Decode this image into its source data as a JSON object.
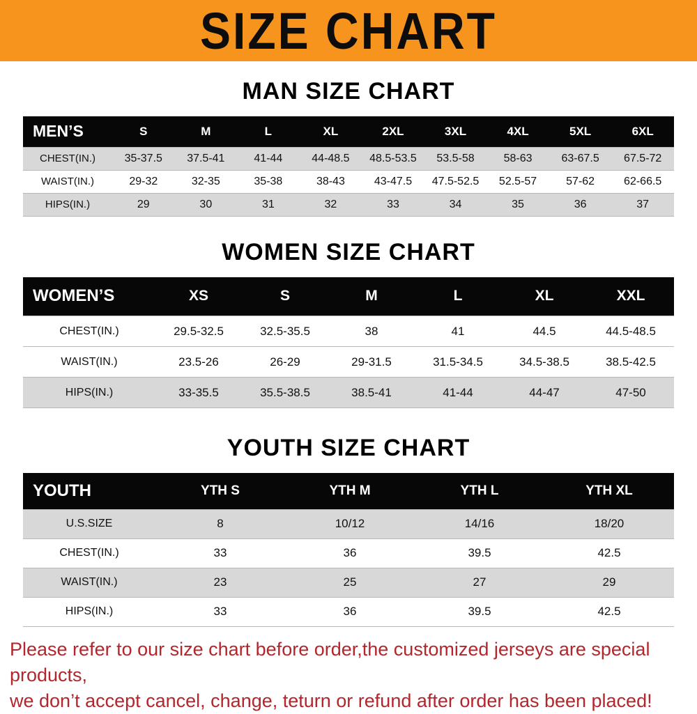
{
  "banner": {
    "title": "SIZE CHART"
  },
  "sections": [
    {
      "heading": "MAN SIZE CHART",
      "table": {
        "label": "MEN’S",
        "columns": [
          "S",
          "M",
          "L",
          "XL",
          "2XL",
          "3XL",
          "4XL",
          "5XL",
          "6XL"
        ],
        "rows": [
          {
            "label": "CHEST(IN.)",
            "values": [
              "35-37.5",
              "37.5-41",
              "41-44",
              "44-48.5",
              "48.5-53.5",
              "53.5-58",
              "58-63",
              "63-67.5",
              "67.5-72"
            ]
          },
          {
            "label": "WAIST(IN.)",
            "values": [
              "29-32",
              "32-35",
              "35-38",
              "38-43",
              "43-47.5",
              "47.5-52.5",
              "52.5-57",
              "57-62",
              "62-66.5"
            ]
          },
          {
            "label": "HIPS(IN.)",
            "values": [
              "29",
              "30",
              "31",
              "32",
              "33",
              "34",
              "35",
              "36",
              "37"
            ]
          }
        ]
      }
    },
    {
      "heading": "WOMEN SIZE CHART",
      "table": {
        "label": "WOMEN’S",
        "columns": [
          "XS",
          "S",
          "M",
          "L",
          "XL",
          "XXL"
        ],
        "rows": [
          {
            "label": "CHEST(IN.)",
            "values": [
              "29.5-32.5",
              "32.5-35.5",
              "38",
              "41",
              "44.5",
              "44.5-48.5"
            ]
          },
          {
            "label": "WAIST(IN.)",
            "values": [
              "23.5-26",
              "26-29",
              "29-31.5",
              "31.5-34.5",
              "34.5-38.5",
              "38.5-42.5"
            ]
          },
          {
            "label": "HIPS(IN.)",
            "values": [
              "33-35.5",
              "35.5-38.5",
              "38.5-41",
              "41-44",
              "44-47",
              "47-50"
            ]
          }
        ]
      }
    },
    {
      "heading": "YOUTH SIZE CHART",
      "table": {
        "label": "YOUTH",
        "columns": [
          "YTH S",
          "YTH M",
          "YTH L",
          "YTH XL"
        ],
        "rows": [
          {
            "label": "U.S.SIZE",
            "values": [
              "8",
              "10/12",
              "14/16",
              "18/20"
            ]
          },
          {
            "label": "CHEST(IN.)",
            "values": [
              "33",
              "36",
              "39.5",
              "42.5"
            ]
          },
          {
            "label": "WAIST(IN.)",
            "values": [
              "23",
              "25",
              "27",
              "29"
            ]
          },
          {
            "label": "HIPS(IN.)",
            "values": [
              "33",
              "36",
              "39.5",
              "42.5"
            ]
          }
        ]
      }
    }
  ],
  "footer": {
    "line1": "Please refer to our size chart before order,the customized jerseys are special products,",
    "line2": "we don’t accept cancel, change, teturn or refund after order has been placed!"
  },
  "colors": {
    "banner_bg": "#f7941d",
    "table_header_bg": "#070707",
    "row_shade": "#d8d8d8",
    "footer_text": "#b3262c"
  }
}
